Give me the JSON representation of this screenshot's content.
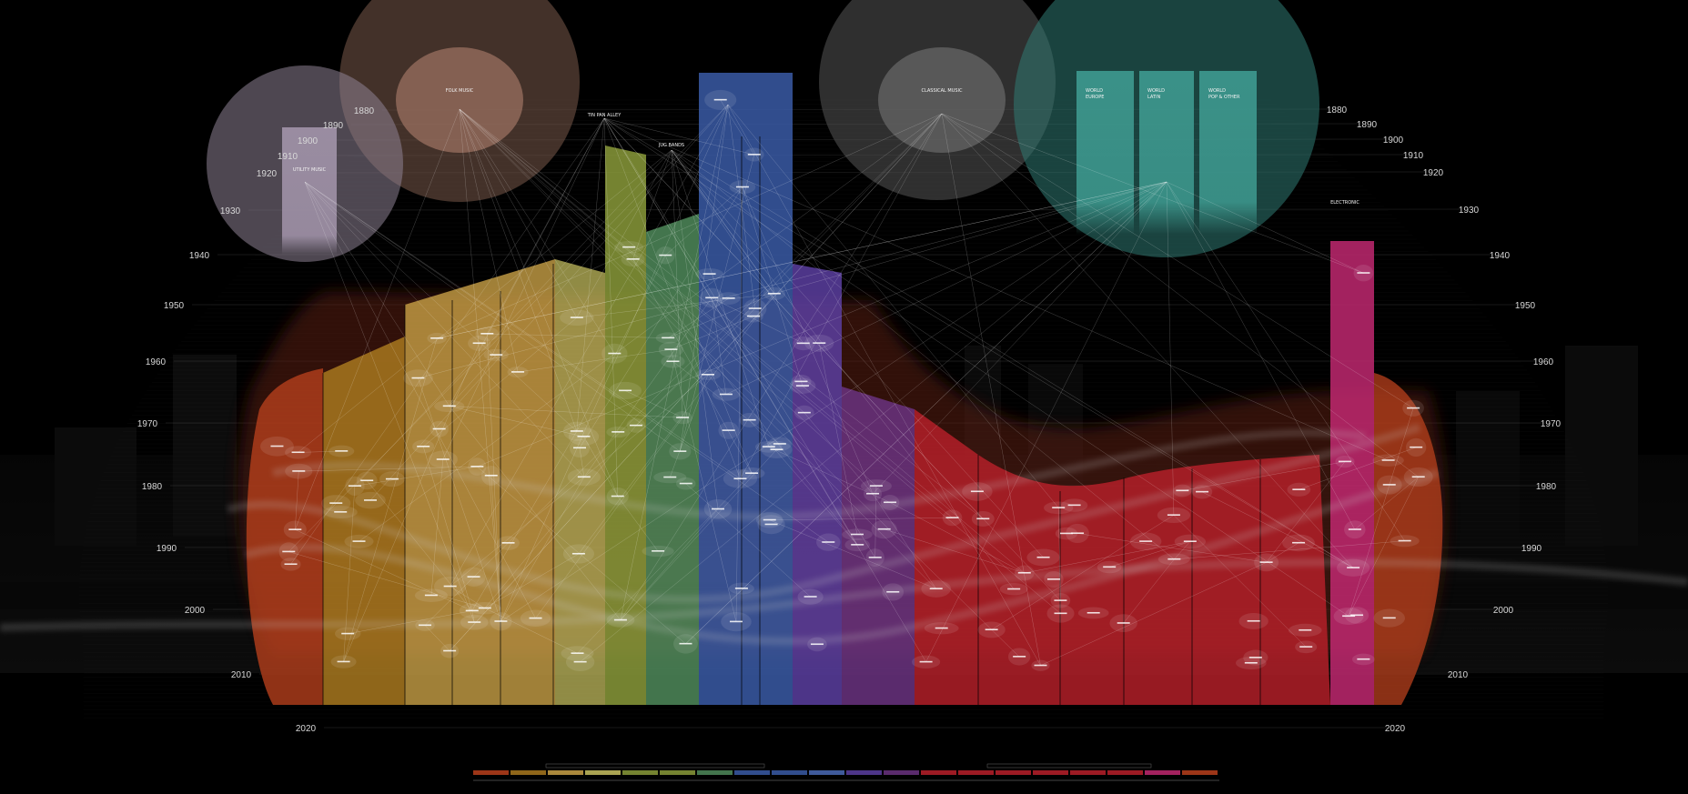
{
  "colors": {
    "background": "#000000",
    "country": "#b8401c",
    "rock": "#a8781e",
    "rock2": "#c8a046",
    "blues": "#c8c060",
    "gospel": "#8a9a3a",
    "rnb": "#4f8a5a",
    "jazz": "#3a5aa6",
    "jazz2": "#4a6ab6",
    "reggae": "#5a3ea0",
    "hiphop": "#6a3280",
    "latin": "#b8202a",
    "electronic": "#c02870",
    "folk_circle": "#7a5a4a",
    "utility_circle": "#8e8294",
    "classical_circle": "#555555",
    "world_circle": "#2f7a72",
    "world_column": "#3e9a90"
  },
  "years_left": [
    {
      "label": "1880"
    },
    {
      "label": "1890"
    },
    {
      "label": "1900"
    },
    {
      "label": "1910"
    },
    {
      "label": "1920"
    },
    {
      "label": "1930"
    },
    {
      "label": "1940"
    },
    {
      "label": "1950"
    },
    {
      "label": "1960"
    },
    {
      "label": "1970"
    },
    {
      "label": "1980"
    },
    {
      "label": "1990"
    },
    {
      "label": "2000"
    },
    {
      "label": "2010"
    },
    {
      "label": "2020"
    }
  ],
  "years_right": [
    {
      "label": "1880"
    },
    {
      "label": "1890"
    },
    {
      "label": "1900"
    },
    {
      "label": "1910"
    },
    {
      "label": "1920"
    },
    {
      "label": "1930"
    },
    {
      "label": "1940"
    },
    {
      "label": "1950"
    },
    {
      "label": "1960"
    },
    {
      "label": "1970"
    },
    {
      "label": "1980"
    },
    {
      "label": "1990"
    },
    {
      "label": "2000"
    },
    {
      "label": "2010"
    },
    {
      "label": "2020"
    }
  ],
  "circles": {
    "folk": {
      "title": "FOLK MUSIC"
    },
    "utility": {
      "title": "UTILITY MUSIC"
    },
    "classical": {
      "title": "CLASSICAL MUSIC"
    }
  },
  "world_columns": [
    {
      "title": "WORLD",
      "subtitle": "EUROPE"
    },
    {
      "title": "WORLD",
      "subtitle": "LATIN"
    },
    {
      "title": "WORLD",
      "subtitle": "POP & OTHER"
    }
  ],
  "labels": {
    "tin_pan_alley": "TIN PAN ALLEY",
    "jug_bands": "JUG BANDS",
    "electronic": "ELECTRONIC"
  }
}
